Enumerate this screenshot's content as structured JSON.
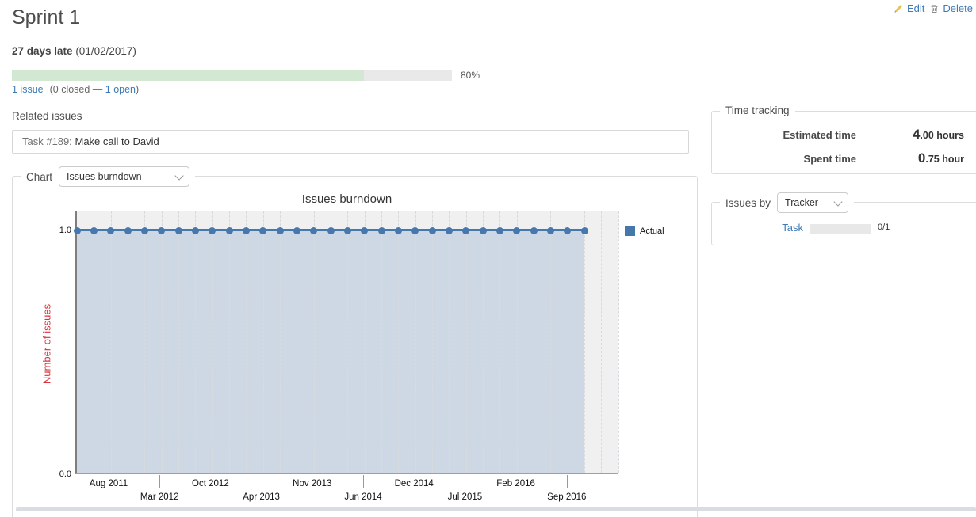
{
  "theme": {
    "link_color": "#3e7ab6",
    "progress_done_color": "#d2e8d2",
    "progress_track_color": "#e9e9e9"
  },
  "header": {
    "title": "Sprint 1"
  },
  "actions": {
    "edit": "Edit",
    "delete": "Delete"
  },
  "status": {
    "late": "27 days late",
    "date": " (01/02/2017)"
  },
  "progress": {
    "percent": 80,
    "percent_label": "80%",
    "issues_link": "1 issue",
    "between": "(0 closed — ",
    "open_link": "1 open",
    "after": ")"
  },
  "related": {
    "heading": "Related issues",
    "issue_link": "Task #189",
    "issue_text": ": Make call to David"
  },
  "chart_panel": {
    "legend": "Chart",
    "select_value": "Issues burndown"
  },
  "chart_data": {
    "type": "line",
    "title": "Issues burndown",
    "ylabel": "Number of issues",
    "y_ticks": [
      "1.0",
      "0.0"
    ],
    "ylim": [
      0.0,
      1.05
    ],
    "x_labels": [
      "Aug 2011",
      "Mar 2012",
      "Oct 2012",
      "Apr 2013",
      "Nov 2013",
      "Jun 2014",
      "Dec 2014",
      "Jul 2015",
      "Feb 2016",
      "Sep 2016"
    ],
    "series": [
      {
        "name": "Actual",
        "constant_value": 1.0,
        "n_points": 31
      }
    ],
    "fill_under_line": true,
    "grid": "vertical-dashed",
    "legend_position": "right",
    "colors": {
      "line": "#4678ad",
      "fill": "#cdd8e4",
      "plot_bg": "#f0f0f1",
      "ylabel": "#d9333f",
      "legend_swatch": "#4677aa"
    }
  },
  "sidebar": {
    "time_tracking": {
      "legend": "Time tracking",
      "rows": [
        {
          "label": "Estimated time",
          "value_big": "4",
          "value_rest": ".00 hours"
        },
        {
          "label": "Spent time",
          "value_big": "0",
          "value_rest": ".75 hour"
        }
      ]
    },
    "issues_by": {
      "legend": "Issues by",
      "select_value": "Tracker",
      "rows": [
        {
          "label": "Task",
          "count": "0/1",
          "ratio": 0
        }
      ]
    }
  }
}
